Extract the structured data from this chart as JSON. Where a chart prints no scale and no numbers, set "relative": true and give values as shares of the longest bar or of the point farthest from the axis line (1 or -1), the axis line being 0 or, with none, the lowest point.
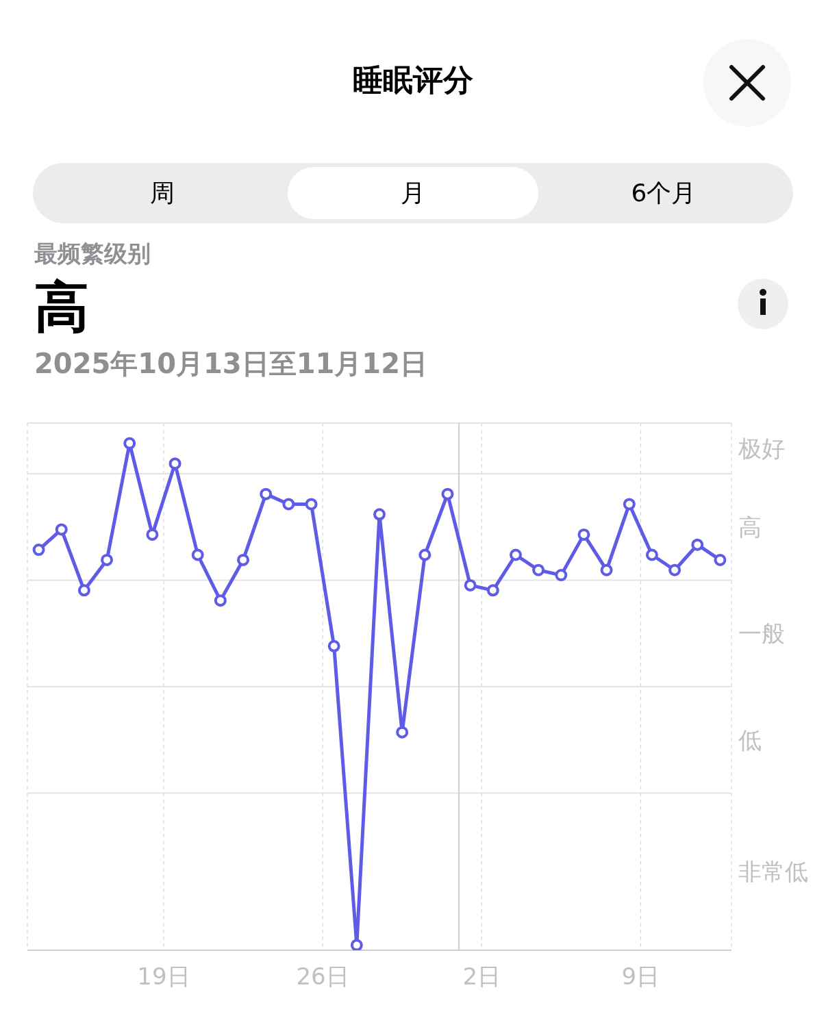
{
  "chart_data": {
    "type": "line",
    "title": "睡眠评分",
    "subtitle": "2025年10月13日至11月12日",
    "annotations": [
      "周",
      "月",
      "6个月",
      "最频繁级别",
      "高",
      "极好",
      "高",
      "一般",
      "低",
      "非常低"
    ],
    "x": [
      "2025-10-13T12:00",
      "2025-10-14T12:00",
      "2025-10-15T12:00",
      "2025-10-16T12:00",
      "2025-10-17T12:00",
      "2025-10-18T12:00",
      "2025-10-19T12:00",
      "2025-10-20T12:00",
      "2025-10-21T12:00",
      "2025-10-22T12:00",
      "2025-10-23T12:00",
      "2025-10-24T12:00",
      "2025-10-25T12:00",
      "2025-10-26T12:00",
      "2025-10-27T12:00",
      "2025-10-28T12:00",
      "2025-10-29T12:00",
      "2025-10-30T12:00",
      "2025-10-31T12:00",
      "2025-11-01T12:00",
      "2025-11-02T12:00",
      "2025-11-03T12:00",
      "2025-11-04T12:00",
      "2025-11-05T12:00",
      "2025-11-06T12:00",
      "2025-11-07T12:00",
      "2025-11-08T12:00",
      "2025-11-09T12:00",
      "2025-11-10T12:00",
      "2025-11-11T12:00",
      "2025-11-12T12:00"
    ],
    "values": [
      0.79,
      0.83,
      0.71,
      0.77,
      1,
      0.82,
      0.96,
      0.78,
      0.69,
      0.77,
      0.9,
      0.88,
      0.88,
      0.6,
      0.01,
      0.86,
      0.43,
      0.78,
      0.9,
      0.72,
      0.71,
      0.78,
      0.75,
      0.74,
      0.82,
      0.75,
      0.88,
      0.78,
      0.75,
      0.8,
      0.77
    ],
    "relative": true,
    "color": "#5e5ce6",
    "marker": "circle",
    "line_style": "solid",
    "xlim": [
      "2025-10-13",
      "2025-11-13"
    ],
    "xticks": [
      {
        "value": "2025-10-19",
        "label": "19日"
      },
      {
        "value": "2025-10-26",
        "label": "26日"
      },
      {
        "value": "2025-11-02",
        "label": "2日"
      },
      {
        "value": "2025-11-09",
        "label": "9日"
      }
    ],
    "ref_lines": [
      {
        "axis": "y",
        "value": 0.31,
        "color": "#e3e3e6"
      },
      {
        "axis": "y",
        "value": 0.52,
        "color": "#e3e3e6"
      },
      {
        "axis": "y",
        "value": 0.73,
        "color": "#e3e3e6"
      },
      {
        "axis": "y",
        "value": 0.94,
        "color": "#e3e3e6"
      },
      {
        "axis": "y",
        "value": 1.04,
        "color": "#e3e3e6"
      },
      {
        "axis": "x",
        "value": "2025-11-01",
        "color": "#d0d0d4"
      }
    ],
    "grid": "x"
  }
}
